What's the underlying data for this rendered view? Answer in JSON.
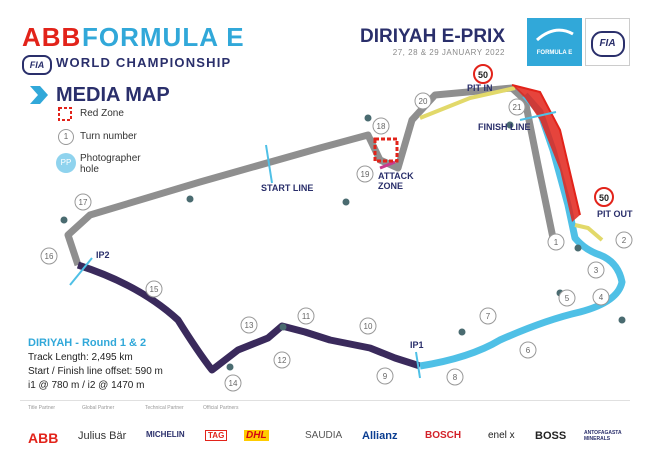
{
  "header": {
    "brand_abb": "ABB",
    "brand_fe": "FORMULA E",
    "fia_mini": "FIA",
    "wc": "WORLD CHAMPIONSHIP",
    "media_title": "MEDIA MAP",
    "event_title": "DIRIYAH E-PRIX",
    "event_date": "27, 28 & 29 JANUARY 2022",
    "fe_logo_text": "FORMULA E",
    "fia_logo_text": "FIA"
  },
  "legend": {
    "red_zone": "Red Zone",
    "turn_number": "Turn number",
    "turn_example": "1",
    "pp_badge": "PP",
    "photographer_hole": "Photographer hole"
  },
  "labels": {
    "start_line": "START LINE",
    "finish_line": "FINISH LINE",
    "pit_in": "PIT IN",
    "pit_out": "PIT OUT",
    "attack_zone_1": "ATTACK",
    "attack_zone_2": "ZONE",
    "ip1": "IP1",
    "ip2": "IP2",
    "speed_limit": "50"
  },
  "turns": [
    "1",
    "2",
    "3",
    "4",
    "5",
    "6",
    "7",
    "8",
    "9",
    "10",
    "11",
    "12",
    "13",
    "14",
    "15",
    "16",
    "17",
    "18",
    "19",
    "20",
    "21"
  ],
  "info": {
    "round": "DIRIYAH - Round 1 & 2",
    "track_length": "Track Length: 2,495 km",
    "offset": "Start / Finish line offset: 590 m",
    "intervals": "i1 @ 780 m / i2 @ 1470 m"
  },
  "partners": {
    "title": "Title Partner",
    "global": "Global Partner",
    "technical": "Technical Partner",
    "official": "Official Partners"
  },
  "sponsors": [
    "ABB",
    "Julius Bär",
    "MICHELIN",
    "TAG",
    "DHL",
    "SAUDIA",
    "Allianz",
    "BOSCH",
    "enel x",
    "BOSS",
    "ANTOFAGASTA MINERALS"
  ],
  "colors": {
    "sector1": "#4fc0e6",
    "sector2": "#3a2a5c",
    "sector3": "#8f8f8f",
    "pitlane": "#e2d96a",
    "redzone": "#e2231a",
    "navy": "#2a2f6b",
    "accent": "#31a8d9"
  }
}
